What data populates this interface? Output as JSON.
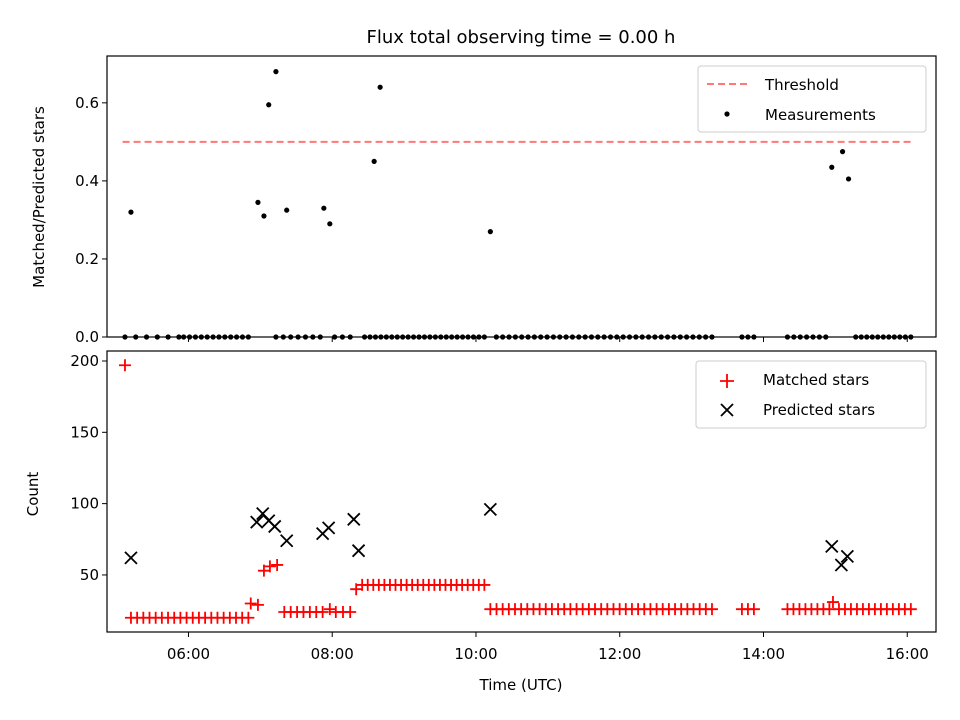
{
  "figure": {
    "title": "Flux total observing time = 0.00 h"
  },
  "chart_data": [
    {
      "type": "scatter",
      "panel": "top",
      "title": "Flux total observing time = 0.00 h",
      "xlabel": "",
      "ylabel": "Matched/Predicted stars",
      "xlim": [
        "04:52",
        "16:24"
      ],
      "ylim": [
        0,
        0.72
      ],
      "yticks": [
        0.0,
        0.2,
        0.4,
        0.6
      ],
      "ytick_labels": [
        "0.0",
        "0.2",
        "0.4",
        "0.6"
      ],
      "xticks": [
        "06:00",
        "08:00",
        "10:00",
        "12:00",
        "14:00",
        "16:00"
      ],
      "grid": false,
      "legend": "top-right",
      "threshold": {
        "name": "Threshold",
        "value": 0.5,
        "x_start": "05:05",
        "x_end": "16:05",
        "color": "#ff7777"
      },
      "measurements": {
        "name": "Measurements",
        "color": "#000000",
        "points": [
          [
            "05:12",
            0.32
          ],
          [
            "06:58",
            0.345
          ],
          [
            "07:03",
            0.31
          ],
          [
            "07:07",
            0.595
          ],
          [
            "07:13",
            0.68
          ],
          [
            "07:22",
            0.325
          ],
          [
            "07:53",
            0.33
          ],
          [
            "07:58",
            0.29
          ],
          [
            "08:35",
            0.45
          ],
          [
            "08:40",
            0.64
          ],
          [
            "10:12",
            0.27
          ],
          [
            "14:57",
            0.435
          ],
          [
            "15:06",
            0.475
          ],
          [
            "15:11",
            0.405
          ]
        ],
        "zero_value_runs": [
          [
            "05:07",
            "05:52",
            6
          ],
          [
            "05:56",
            "06:50",
            12
          ],
          [
            "07:13",
            "07:50",
            7
          ],
          [
            "08:02",
            "08:15",
            3
          ],
          [
            "08:27",
            "10:07",
            23
          ],
          [
            "10:17",
            "13:17",
            35
          ],
          [
            "13:42",
            "13:52",
            3
          ],
          [
            "14:20",
            "14:52",
            7
          ],
          [
            "15:17",
            "16:03",
            11
          ]
        ]
      }
    },
    {
      "type": "scatter",
      "panel": "bottom",
      "xlabel": "Time (UTC)",
      "ylabel": "Count",
      "xlim": [
        "04:52",
        "16:24"
      ],
      "ylim": [
        10,
        207
      ],
      "yticks": [
        50,
        100,
        150,
        200
      ],
      "ytick_labels": [
        "50",
        "100",
        "150",
        "200"
      ],
      "xticks": [
        "06:00",
        "08:00",
        "10:00",
        "12:00",
        "14:00",
        "16:00"
      ],
      "xtick_labels": [
        "06:00",
        "08:00",
        "10:00",
        "12:00",
        "14:00",
        "16:00"
      ],
      "grid": false,
      "legend": "top-right",
      "matched": {
        "name": "Matched stars",
        "color": "#ff0000",
        "points": [
          [
            "05:07",
            197
          ],
          [
            "06:52",
            30
          ],
          [
            "06:58",
            29
          ],
          [
            "07:03",
            53
          ],
          [
            "07:08",
            56
          ],
          [
            "07:14",
            57
          ],
          [
            "07:58",
            26
          ],
          [
            "08:20",
            40
          ],
          [
            "14:58",
            31
          ]
        ],
        "runs": [
          [
            "05:12",
            "06:50",
            20,
            20
          ],
          [
            "07:20",
            "07:52",
            24,
            7
          ],
          [
            "08:03",
            "08:15",
            24,
            3
          ],
          [
            "08:25",
            "10:07",
            43,
            23
          ],
          [
            "10:12",
            "13:17",
            26,
            37
          ],
          [
            "13:42",
            "13:52",
            26,
            3
          ],
          [
            "14:20",
            "14:55",
            26,
            8
          ],
          [
            "15:03",
            "16:03",
            26,
            13
          ]
        ]
      },
      "predicted": {
        "name": "Predicted stars",
        "color": "#000000",
        "points": [
          [
            "05:12",
            62
          ],
          [
            "06:57",
            87
          ],
          [
            "07:02",
            93
          ],
          [
            "07:07",
            88
          ],
          [
            "07:12",
            84
          ],
          [
            "07:22",
            74
          ],
          [
            "07:52",
            79
          ],
          [
            "07:57",
            83
          ],
          [
            "08:18",
            89
          ],
          [
            "08:22",
            67
          ],
          [
            "10:12",
            96
          ],
          [
            "14:57",
            70
          ],
          [
            "15:05",
            57
          ],
          [
            "15:10",
            63
          ]
        ]
      }
    }
  ]
}
